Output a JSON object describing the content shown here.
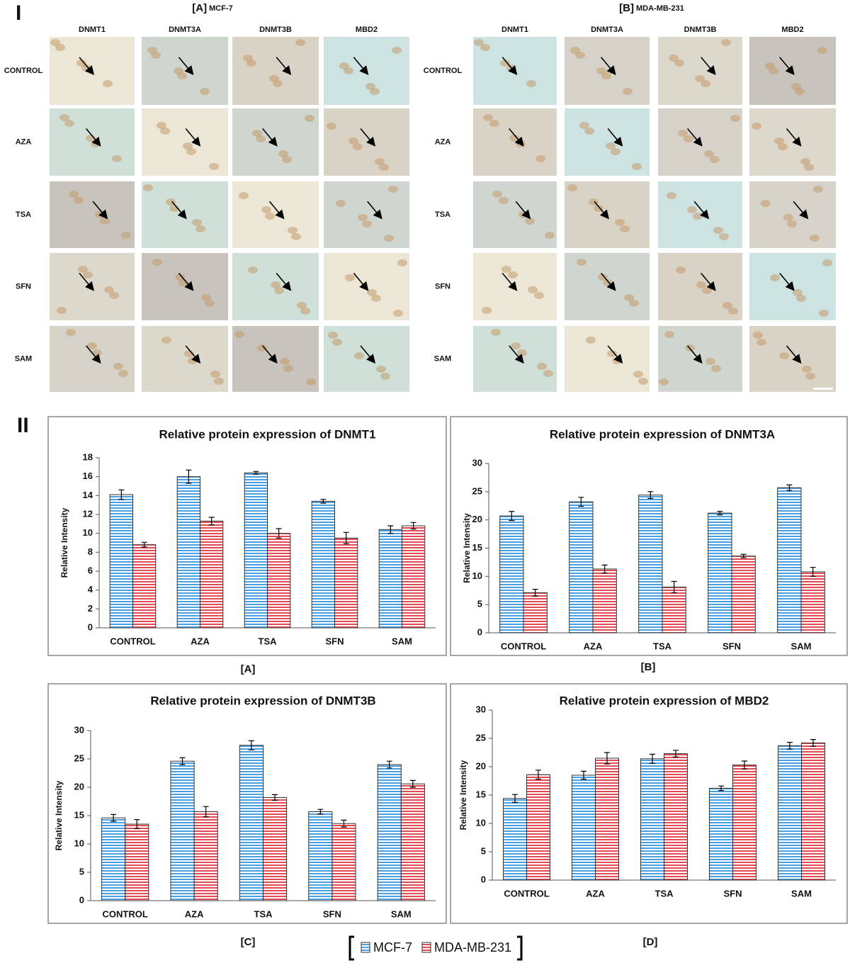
{
  "section_labels": [
    "I",
    "II"
  ],
  "micrographs": [
    {
      "label": "[A]",
      "cell_line": "MCF-7",
      "columns": [
        "DNMT1",
        "DNMT3A",
        "DNMT3B",
        "MBD2"
      ],
      "rows": [
        "CONTROL",
        "AZA",
        "TSA",
        "SFN",
        "SAM"
      ]
    },
    {
      "label": "[B]",
      "cell_line": "MDA-MB-231",
      "columns": [
        "DNMT1",
        "DNMT3A",
        "DNMT3B",
        "MBD2"
      ],
      "rows": [
        "CONTROL",
        "AZA",
        "TSA",
        "SFN",
        "SAM"
      ]
    }
  ],
  "chart_data": [
    {
      "type": "bar",
      "title": "Relative protein expression of DNMT1",
      "caption": "[A]",
      "y_label": "Relative Intensity",
      "categories": [
        "CONTROL",
        "AZA",
        "TSA",
        "SFN",
        "SAM"
      ],
      "series": [
        {
          "name": "MCF-7",
          "color": "#4a9fe0",
          "values": [
            14.1,
            16.0,
            16.4,
            13.4,
            10.4
          ],
          "errors": [
            0.5,
            0.7,
            0.15,
            0.2,
            0.4
          ]
        },
        {
          "name": "MDA-MB-231",
          "color": "#e04a52",
          "values": [
            8.8,
            11.3,
            10.0,
            9.5,
            10.8
          ],
          "errors": [
            0.25,
            0.4,
            0.5,
            0.6,
            0.35
          ]
        }
      ],
      "ylim": [
        0,
        18
      ],
      "yticks": [
        0,
        2,
        4,
        6,
        8,
        10,
        12,
        14,
        16,
        18
      ]
    },
    {
      "type": "bar",
      "title": "Relative protein expression of DNMT3A",
      "caption": "[B]",
      "y_label": "Relative Intensity",
      "categories": [
        "CONTROL",
        "AZA",
        "TSA",
        "SFN",
        "SAM"
      ],
      "series": [
        {
          "name": "MCF-7",
          "color": "#4a9fe0",
          "values": [
            20.7,
            23.2,
            24.4,
            21.2,
            25.7
          ],
          "errors": [
            0.8,
            0.8,
            0.6,
            0.3,
            0.5
          ]
        },
        {
          "name": "MDA-MB-231",
          "color": "#e04a52",
          "values": [
            7.1,
            11.3,
            8.1,
            13.6,
            10.8
          ],
          "errors": [
            0.6,
            0.7,
            1.0,
            0.3,
            0.8
          ]
        }
      ],
      "ylim": [
        0,
        30
      ],
      "yticks": [
        0,
        5,
        10,
        15,
        20,
        25,
        30
      ]
    },
    {
      "type": "bar",
      "title": "Relative protein expression of DNMT3B",
      "caption": "[C]",
      "y_label": "Relative Intensity",
      "categories": [
        "CONTROL",
        "AZA",
        "TSA",
        "SFN",
        "SAM"
      ],
      "series": [
        {
          "name": "MCF-7",
          "color": "#4a9fe0",
          "values": [
            14.6,
            24.6,
            27.4,
            15.7,
            24.0
          ],
          "errors": [
            0.6,
            0.6,
            0.8,
            0.4,
            0.6
          ]
        },
        {
          "name": "MDA-MB-231",
          "color": "#e04a52",
          "values": [
            13.5,
            15.7,
            18.2,
            13.6,
            20.6
          ],
          "errors": [
            0.8,
            0.9,
            0.5,
            0.6,
            0.6
          ]
        }
      ],
      "ylim": [
        0,
        30
      ],
      "yticks": [
        0,
        5,
        10,
        15,
        20,
        25,
        30
      ]
    },
    {
      "type": "bar",
      "title": "Relative protein expression of MBD2",
      "caption": "[D]",
      "y_label": "Relative Intensity",
      "categories": [
        "CONTROL",
        "AZA",
        "TSA",
        "SFN",
        "SAM"
      ],
      "series": [
        {
          "name": "MCF-7",
          "color": "#4a9fe0",
          "values": [
            14.4,
            18.5,
            21.4,
            16.2,
            23.7
          ],
          "errors": [
            0.7,
            0.7,
            0.8,
            0.4,
            0.6
          ]
        },
        {
          "name": "MDA-MB-231",
          "color": "#e04a52",
          "values": [
            18.6,
            21.5,
            22.3,
            20.3,
            24.2
          ],
          "errors": [
            0.8,
            1.0,
            0.6,
            0.7,
            0.6
          ]
        }
      ],
      "ylim": [
        0,
        30
      ],
      "yticks": [
        0,
        5,
        10,
        15,
        20,
        25,
        30
      ]
    }
  ]
}
